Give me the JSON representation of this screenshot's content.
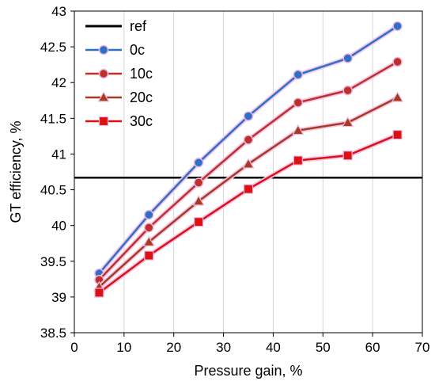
{
  "chart_data": {
    "type": "line",
    "title": "",
    "xlabel": "Pressure gain, %",
    "ylabel": "GT efficiency, %",
    "xlim": [
      0,
      70
    ],
    "ylim": [
      38.5,
      43
    ],
    "xticks": [
      0,
      10,
      20,
      30,
      40,
      50,
      60,
      70
    ],
    "yticks": [
      38.5,
      39,
      39.5,
      40,
      40.5,
      41,
      41.5,
      42,
      42.5,
      43
    ],
    "grid": "vertical",
    "legend_position": "top-left",
    "x": [
      5,
      15,
      25,
      35,
      45,
      55,
      65
    ],
    "reference": {
      "name": "ref",
      "value": 40.67,
      "color": "#000000"
    },
    "series": [
      {
        "name": "0c",
        "marker": "circle",
        "color": "#2E6FC8",
        "values": [
          39.33,
          40.15,
          40.88,
          41.53,
          42.11,
          42.34,
          42.79
        ]
      },
      {
        "name": "10c",
        "marker": "circle",
        "color": "#C0302A",
        "values": [
          39.24,
          39.97,
          40.6,
          41.2,
          41.72,
          41.89,
          42.29
        ]
      },
      {
        "name": "20c",
        "marker": "triangle",
        "color": "#A83A20",
        "values": [
          39.14,
          39.77,
          40.34,
          40.86,
          41.33,
          41.44,
          41.79
        ]
      },
      {
        "name": "30c",
        "marker": "square",
        "color": "#DD1111",
        "values": [
          39.06,
          39.58,
          40.05,
          40.51,
          40.91,
          40.98,
          41.27
        ]
      }
    ]
  }
}
